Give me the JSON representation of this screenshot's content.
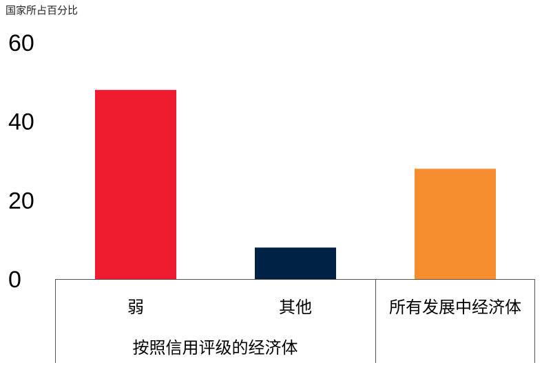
{
  "chart_data": {
    "type": "bar",
    "unit_label": "国家所占百分比",
    "categories": [
      "弱",
      "其他",
      "所有发展中经济体"
    ],
    "values": [
      48,
      8,
      28
    ],
    "colors": [
      "#ED1C2E",
      "#002245",
      "#F68D2E"
    ],
    "yticks": [
      0,
      20,
      40,
      60
    ],
    "ylim": [
      0,
      60
    ],
    "grid": false,
    "group_label": "按照信用评级的经济体"
  }
}
